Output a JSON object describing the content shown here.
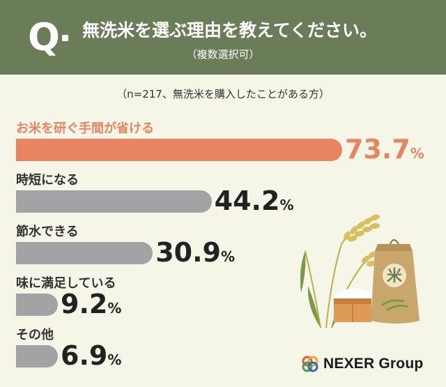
{
  "header": {
    "q_mark": "Q",
    "question": "無洗米を選ぶ理由を教えてください。",
    "note": "（複数選択可）",
    "bg_color": "#6a7d58"
  },
  "respondents": "（n=217、無洗米を購入したことがある方）",
  "colors": {
    "highlight": "#e98462",
    "default": "#a3a3a6",
    "background": "#f5f5e8"
  },
  "chart_data": {
    "type": "bar",
    "orientation": "horizontal",
    "unit": "%",
    "categories": [
      "お米を研ぐ手間が省ける",
      "時短になる",
      "節水できる",
      "味に満足している",
      "その他"
    ],
    "values": [
      73.7,
      44.2,
      30.9,
      9.2,
      6.9
    ],
    "value_labels": [
      "73.7",
      "44.2",
      "30.9",
      "9.2",
      "6.9"
    ]
  },
  "illustration": {
    "bag_icon": "rice-bag-icon",
    "bag_text": "米",
    "box_icon": "rice-box-icon",
    "plant_icon": "rice-plant-icon"
  },
  "logo": {
    "text": "NEXER Group",
    "icon": "nexer-rings-icon"
  }
}
